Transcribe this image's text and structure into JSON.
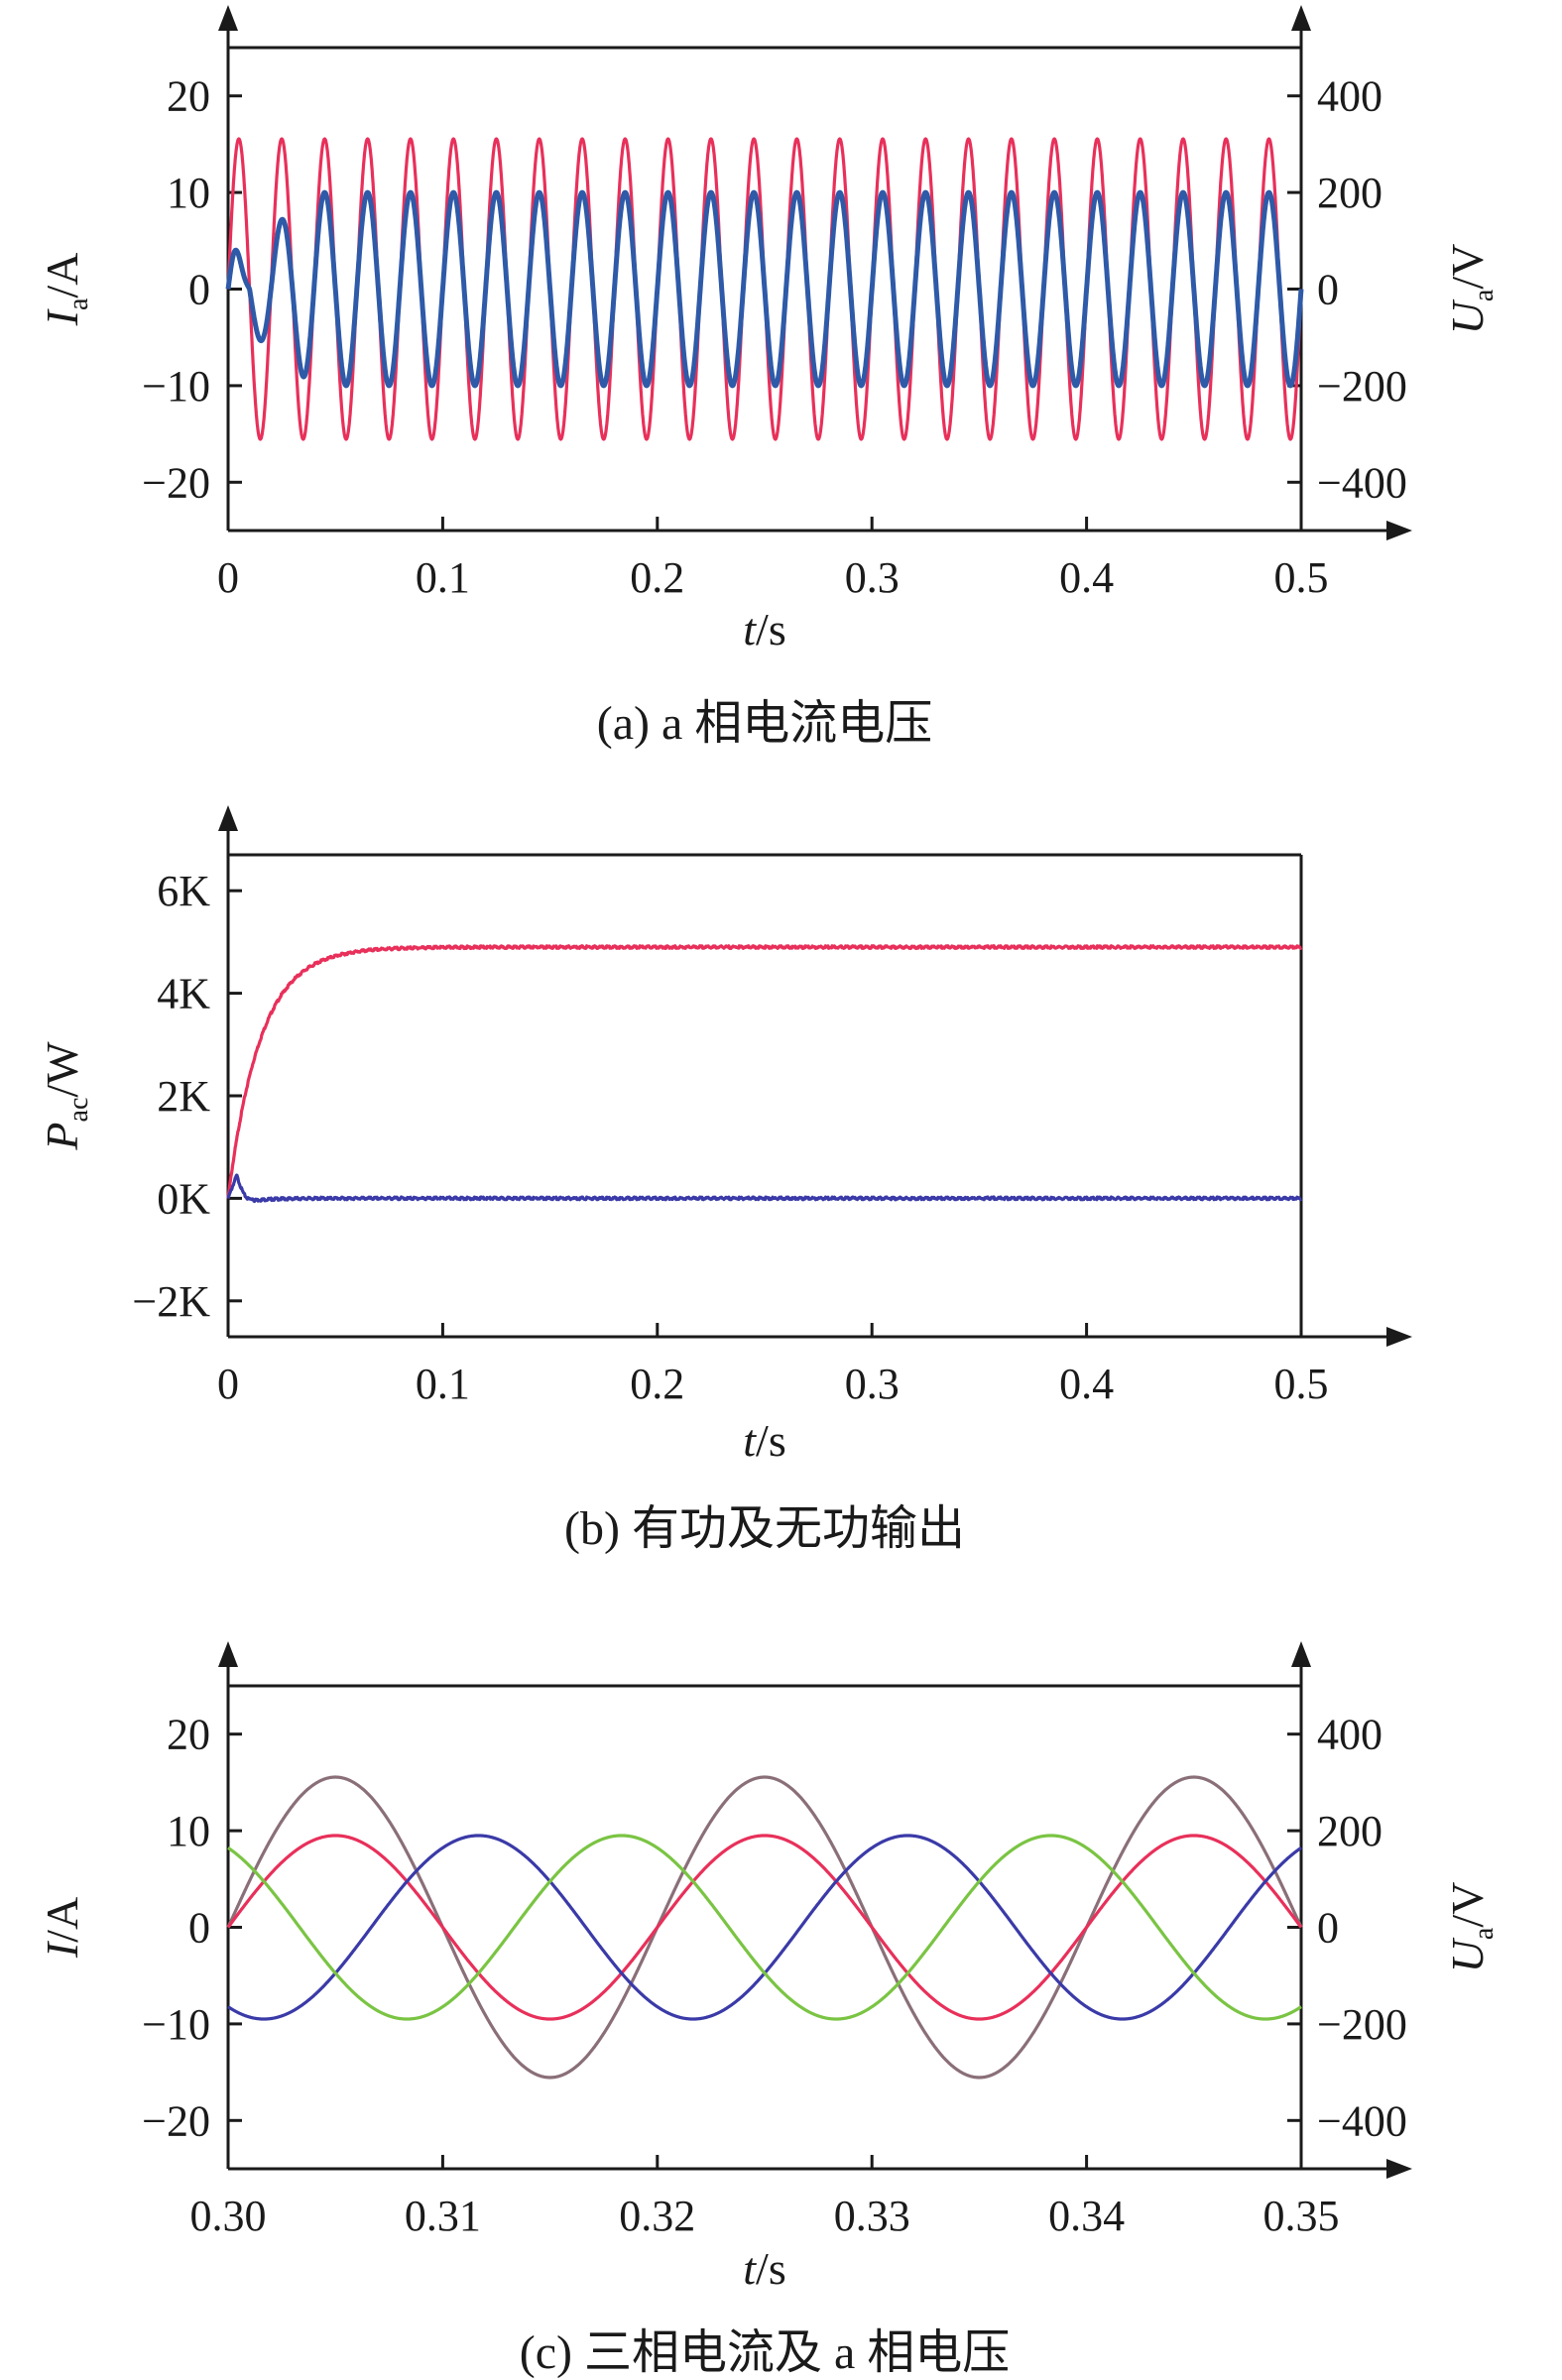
{
  "chart_data": [
    {
      "id": "a",
      "type": "line",
      "caption": "(a) a 相电流电压",
      "xlabel": {
        "var": "t",
        "unit": "/s"
      },
      "ylabel_left": {
        "var": "I",
        "sub": "a",
        "unit": "/A"
      },
      "ylabel_right": {
        "var": "U",
        "sub": "a",
        "unit": "/V"
      },
      "xlim": [
        0,
        0.5
      ],
      "ylim_left": [
        -25,
        25
      ],
      "ylim_right": [
        -500,
        500
      ],
      "xticks": [
        "0",
        "0.1",
        "0.2",
        "0.3",
        "0.4",
        "0.5"
      ],
      "yticks_left": [
        "20",
        "10",
        "0",
        "−10",
        "−20"
      ],
      "yticks_right": [
        "400",
        "200",
        "0",
        "−200",
        "−400"
      ],
      "grid": false,
      "series": [
        {
          "color": "#e8305a",
          "axis": "right",
          "kind": "sine",
          "amplitude": 311,
          "frequency": 50,
          "phase_deg": 0
        },
        {
          "color": "#2e5aa8",
          "axis": "left",
          "kind": "sine_ramp",
          "amplitude": 10,
          "frequency": 50,
          "phase_deg": 0,
          "ramp_time": 0.04
        }
      ]
    },
    {
      "id": "b",
      "type": "line",
      "caption": "(b) 有功及无功输出",
      "xlabel": {
        "var": "t",
        "unit": "/s"
      },
      "ylabel_left": {
        "var": "P",
        "sub": "ac",
        "unit": "/W"
      },
      "xlim": [
        0,
        0.5
      ],
      "ylim": [
        -2700,
        6700
      ],
      "xticks": [
        "0",
        "0.1",
        "0.2",
        "0.3",
        "0.4",
        "0.5"
      ],
      "yticks": [
        "6K",
        "4K",
        "2K",
        "0K",
        "−2K"
      ],
      "grid": false,
      "series": [
        {
          "color": "#e8305a",
          "kind": "first_order",
          "final": 4900,
          "tau": 0.015
        },
        {
          "color": "#3a3aa8",
          "kind": "spike",
          "final": 0,
          "peak": 450,
          "peak_time": 0.004,
          "settle": 0.012
        }
      ]
    },
    {
      "id": "c",
      "type": "line",
      "caption": "(c) 三相电流及 a 相电压",
      "xlabel": {
        "var": "t",
        "unit": "/s"
      },
      "ylabel_left": {
        "var": "I",
        "sub": "",
        "unit": "/A"
      },
      "ylabel_right": {
        "var": "U",
        "sub": "a",
        "unit": "/V"
      },
      "xlim": [
        0.3,
        0.35
      ],
      "ylim_left": [
        -25,
        25
      ],
      "ylim_right": [
        -500,
        500
      ],
      "xticks": [
        "0.30",
        "0.31",
        "0.32",
        "0.33",
        "0.34",
        "0.35"
      ],
      "yticks_left": [
        "20",
        "10",
        "0",
        "−10",
        "−20"
      ],
      "yticks_right": [
        "400",
        "200",
        "0",
        "−200",
        "−400"
      ],
      "grid": false,
      "series": [
        {
          "color": "#8a6f78",
          "axis": "right",
          "kind": "sine",
          "amplitude": 311,
          "frequency": 50,
          "phase_deg": 0
        },
        {
          "color": "#e8305a",
          "axis": "left",
          "kind": "sine",
          "amplitude": 9.5,
          "frequency": 50,
          "phase_deg": 0
        },
        {
          "color": "#3a3aa8",
          "axis": "left",
          "kind": "sine",
          "amplitude": 9.5,
          "frequency": 50,
          "phase_deg": -120
        },
        {
          "color": "#7ac443",
          "axis": "left",
          "kind": "sine",
          "amplitude": 9.5,
          "frequency": 50,
          "phase_deg": 120
        }
      ]
    }
  ]
}
